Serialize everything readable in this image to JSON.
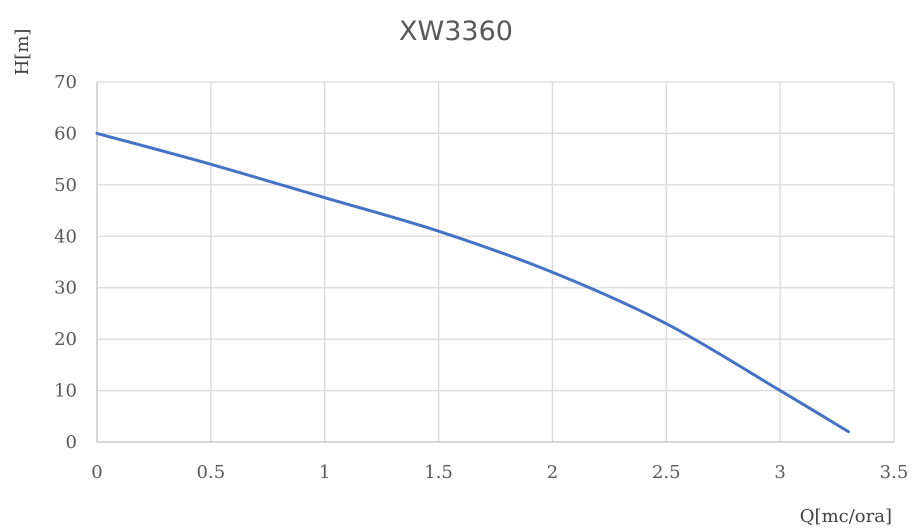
{
  "chart_data": {
    "type": "line",
    "title": "XW3360",
    "xlabel": "Q[mc/ora]",
    "ylabel": "H[m]",
    "xlim": [
      0,
      3.5
    ],
    "ylim": [
      0,
      70
    ],
    "x_ticks": [
      "0",
      "0.5",
      "1",
      "1.5",
      "2",
      "2.5",
      "3",
      "3.5"
    ],
    "y_ticks": [
      "0",
      "10",
      "20",
      "30",
      "40",
      "50",
      "60",
      "70"
    ],
    "grid": true,
    "legend": "none",
    "series": [
      {
        "color": "#4472c4",
        "points": [
          {
            "x": 0,
            "y": 60
          },
          {
            "x": 0.5,
            "y": 54
          },
          {
            "x": 1,
            "y": 47.5
          },
          {
            "x": 1.5,
            "y": 41
          },
          {
            "x": 2,
            "y": 33
          },
          {
            "x": 2.5,
            "y": 23
          },
          {
            "x": 3,
            "y": 10
          },
          {
            "x": 3.3,
            "y": 2
          }
        ]
      }
    ]
  }
}
